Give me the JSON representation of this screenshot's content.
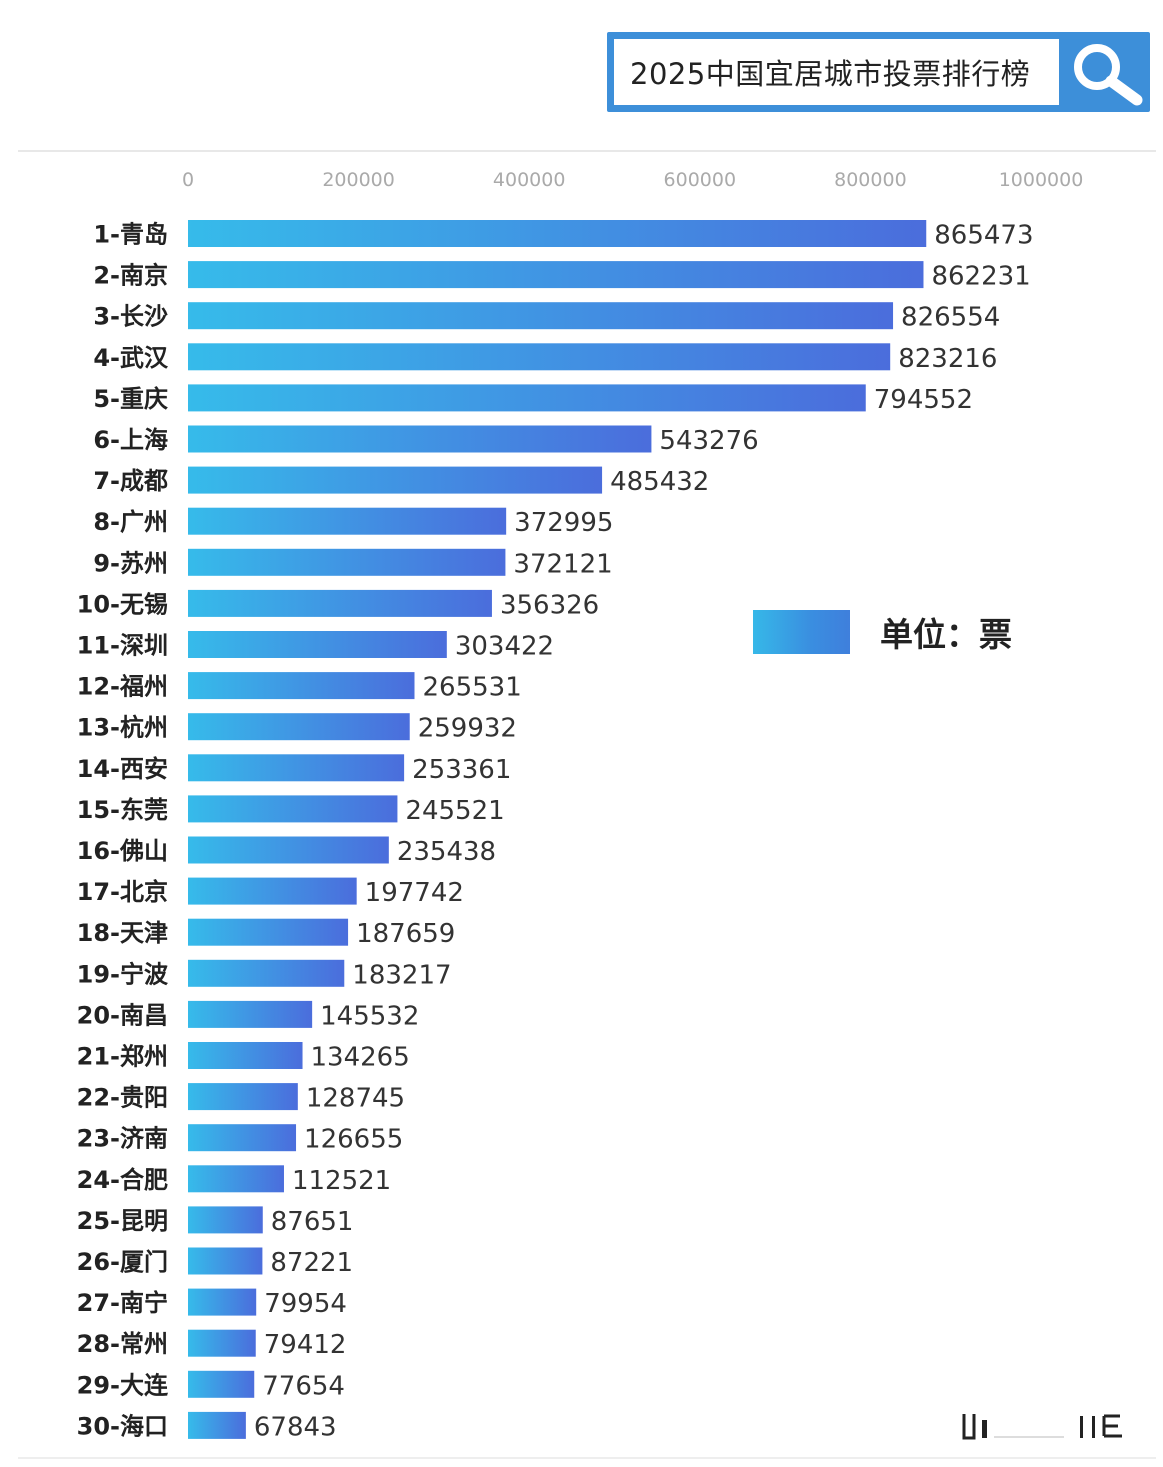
{
  "search": {
    "query": "2025中国宜居城市投票排行榜",
    "button_icon": "search-icon"
  },
  "legend": {
    "label": "单位：票"
  },
  "colors": {
    "bar_start": "#36bbea",
    "bar_end": "#4b6ddc",
    "search_frame": "#3d8fd9"
  },
  "chart_data": {
    "type": "bar",
    "orientation": "horizontal",
    "title": "",
    "xlabel": "",
    "ylabel": "",
    "xlim": [
      0,
      1000000
    ],
    "x_ticks": [
      "0",
      "200000",
      "400000",
      "600000",
      "800000",
      "1000000"
    ],
    "legend_label": "单位：票",
    "legend_position": "right",
    "grid": false,
    "categories": [
      "1-青岛",
      "2-南京",
      "3-长沙",
      "4-武汉",
      "5-重庆",
      "6-上海",
      "7-成都",
      "8-广州",
      "9-苏州",
      "10-无锡",
      "11-深圳",
      "12-福州",
      "13-杭州",
      "14-西安",
      "15-东莞",
      "16-佛山",
      "17-北京",
      "18-天津",
      "19-宁波",
      "20-南昌",
      "21-郑州",
      "22-贵阳",
      "23-济南",
      "24-合肥",
      "25-昆明",
      "26-厦门",
      "27-南宁",
      "28-常州",
      "29-大连",
      "30-海口"
    ],
    "values": [
      865473,
      862231,
      826554,
      823216,
      794552,
      543276,
      485432,
      372995,
      372121,
      356326,
      303422,
      265531,
      259932,
      253361,
      245521,
      235438,
      197742,
      187659,
      183217,
      145532,
      134265,
      128745,
      126655,
      112521,
      87651,
      87221,
      79954,
      79412,
      77654,
      67843
    ]
  }
}
